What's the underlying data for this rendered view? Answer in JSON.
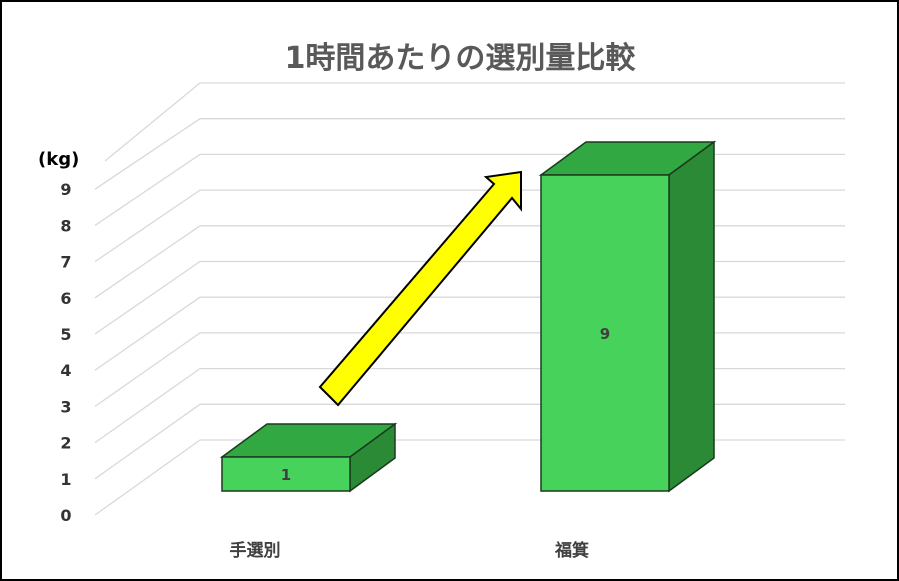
{
  "chart_data": {
    "type": "bar",
    "title": "1時間あたりの選別量比較",
    "unit_label": "(kg)",
    "categories": [
      "手選別",
      "福箕"
    ],
    "values": [
      1,
      9
    ],
    "y_ticks": [
      "0",
      "1",
      "2",
      "3",
      "4",
      "5",
      "6",
      "7",
      "8",
      "9"
    ],
    "data_labels": [
      "1",
      "9"
    ],
    "ylim": [
      0,
      9
    ],
    "grid": true,
    "legend": "none",
    "colors": {
      "bar_front": "#47d35b",
      "bar_top": "#32a843",
      "bar_side": "#2b8a36",
      "bar_stroke": "#1a3a1e",
      "grid": "#d9d9d9",
      "arrow_fill": "#ffff00",
      "arrow_stroke": "#000000",
      "border": "#000000"
    }
  }
}
